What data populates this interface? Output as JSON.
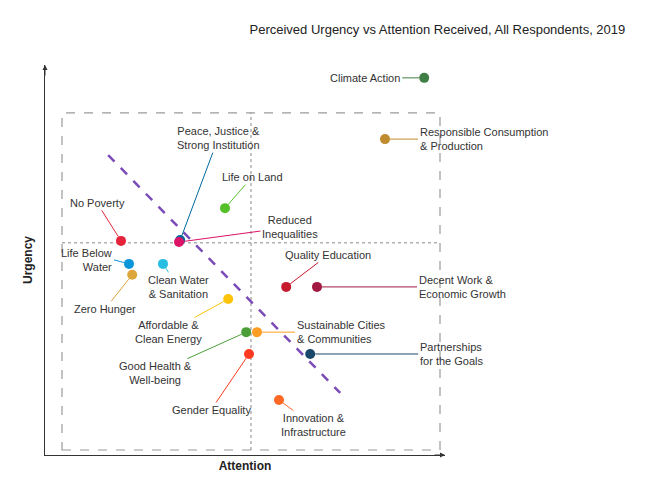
{
  "chart_data": {
    "type": "scatter",
    "title": "Perceived Urgency vs Attention Received, All Respondents, 2019",
    "x_label": "Attention",
    "y_label": "Urgency",
    "xlim": [
      0,
      100
    ],
    "ylim": [
      0,
      100
    ],
    "xticks": [],
    "yticks": [],
    "tick_labels": false,
    "grid": false,
    "marker": "circle",
    "points": [
      {
        "label": "Climate Action",
        "x": 94.8,
        "y": 96.7,
        "color": "#3f7e44"
      },
      {
        "label": "Responsible Consumption\n& Production",
        "x": 85.0,
        "y": 81.0,
        "color": "#bf8b2e"
      },
      {
        "label": "Peace, Justice &\nStrong Institution",
        "x": 33.8,
        "y": 55.1,
        "color": "#00689d"
      },
      {
        "label": "Life on Land",
        "x": 45.0,
        "y": 63.3,
        "color": "#56c02b"
      },
      {
        "label": "Reduced\nInequalities",
        "x": 33.5,
        "y": 54.6,
        "color": "#dd1367"
      },
      {
        "label": "No Poverty",
        "x": 19.0,
        "y": 54.9,
        "color": "#e5243b"
      },
      {
        "label": "Life Below\nWater",
        "x": 21.0,
        "y": 49.0,
        "color": "#0a97d9"
      },
      {
        "label": "Clean Water\n& Sanitation",
        "x": 29.5,
        "y": 49.0,
        "color": "#26bde2"
      },
      {
        "label": "Zero Hunger",
        "x": 21.8,
        "y": 46.2,
        "color": "#dda63a"
      },
      {
        "label": "Affordable &\nClean Energy",
        "x": 45.8,
        "y": 40.0,
        "color": "#fcc30b"
      },
      {
        "label": "Quality Education",
        "x": 60.3,
        "y": 43.1,
        "color": "#c5192d"
      },
      {
        "label": "Decent Work &\nEconomic Growth",
        "x": 68.0,
        "y": 43.1,
        "color": "#a21942"
      },
      {
        "label": "Good Health &\nWell-being",
        "x": 50.3,
        "y": 31.5,
        "color": "#4c9f38"
      },
      {
        "label": "Sustainable Cities\n& Communities",
        "x": 53.0,
        "y": 31.5,
        "color": "#fd9d24"
      },
      {
        "label": "Gender Equality",
        "x": 51.0,
        "y": 25.9,
        "color": "#ff3a21"
      },
      {
        "label": "Partnerships\nfor the Goals",
        "x": 66.3,
        "y": 25.9,
        "color": "#19486a"
      },
      {
        "label": "Innovation &\nInfrastructure",
        "x": 58.5,
        "y": 14.1,
        "color": "#fd6925"
      }
    ],
    "reference_lines": {
      "x": 51.5,
      "y": 54.4
    },
    "trend_line": {
      "x": [
        15.8,
        73.8
      ],
      "y": [
        76.9,
        15.9
      ],
      "color": "#7b4bb8",
      "line_style": "dashed"
    }
  }
}
